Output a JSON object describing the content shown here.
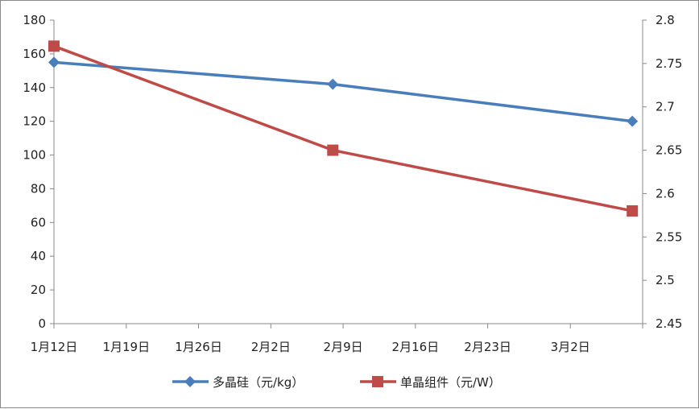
{
  "chart_data": {
    "type": "line",
    "x_ticks": [
      "1月12日",
      "1月19日",
      "1月26日",
      "2月2日",
      "2月9日",
      "2月16日",
      "2月23日",
      "3月2日",
      ""
    ],
    "x_tick_dates": [
      "01-12",
      "01-19",
      "01-26",
      "02-02",
      "02-09",
      "02-16",
      "02-23",
      "03-02",
      "03-09"
    ],
    "xlim": [
      "01-12",
      "03-09"
    ],
    "y_left": {
      "lim": [
        0,
        180
      ],
      "ticks": [
        "0",
        "20",
        "40",
        "60",
        "80",
        "100",
        "120",
        "140",
        "160",
        "180"
      ]
    },
    "y_right": {
      "lim": [
        2.45,
        2.8
      ],
      "ticks": [
        "2.45",
        "2.5",
        "2.55",
        "2.6",
        "2.65",
        "2.7",
        "2.75",
        "2.8"
      ]
    },
    "grid": false,
    "legend_position": "bottom",
    "series": [
      {
        "name": "多晶硅（元/kg）",
        "axis": "left",
        "color": "#4a7ebb",
        "marker": "diamond",
        "x": [
          "01-12",
          "02-08",
          "03-08"
        ],
        "values": [
          155,
          142,
          120
        ]
      },
      {
        "name": "单晶组件（元/W）",
        "axis": "right",
        "color": "#be4b48",
        "marker": "square",
        "x": [
          "01-12",
          "02-08",
          "03-08"
        ],
        "values": [
          2.77,
          2.65,
          2.58
        ]
      }
    ]
  }
}
